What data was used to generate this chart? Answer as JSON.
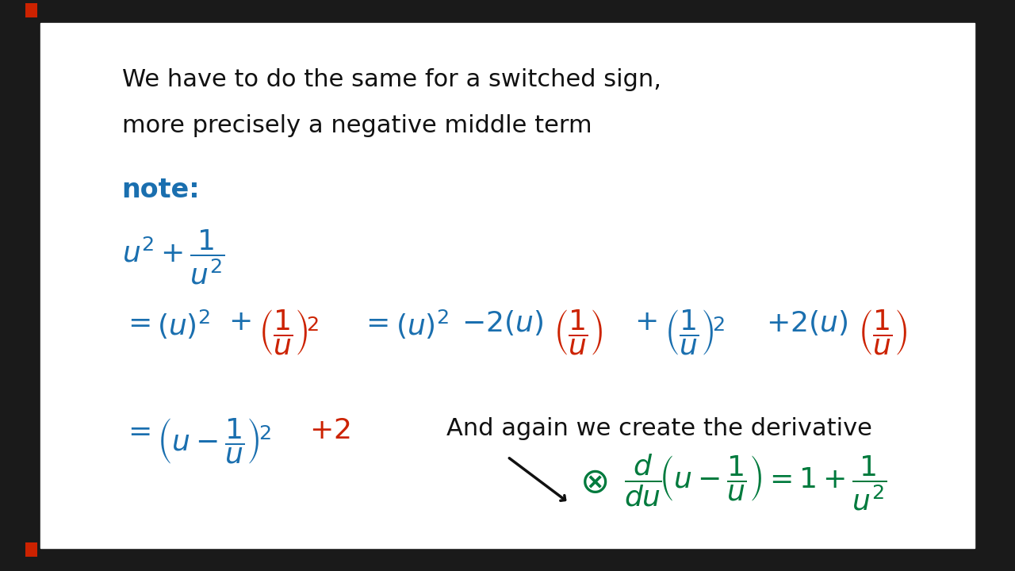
{
  "bg_color": "#ffffff",
  "outer_bg": "#1a1a1a",
  "title_text_line1": "We have to do the same for a switched sign,",
  "title_text_line2": "more precisely a negative middle term",
  "note_label": "note:",
  "note_color": "#1a6faf",
  "title_color": "#111111",
  "blue_color": "#1a6faf",
  "red_color": "#cc2200",
  "green_color": "#007a3d",
  "black_color": "#111111",
  "arrow_color": "#111111"
}
